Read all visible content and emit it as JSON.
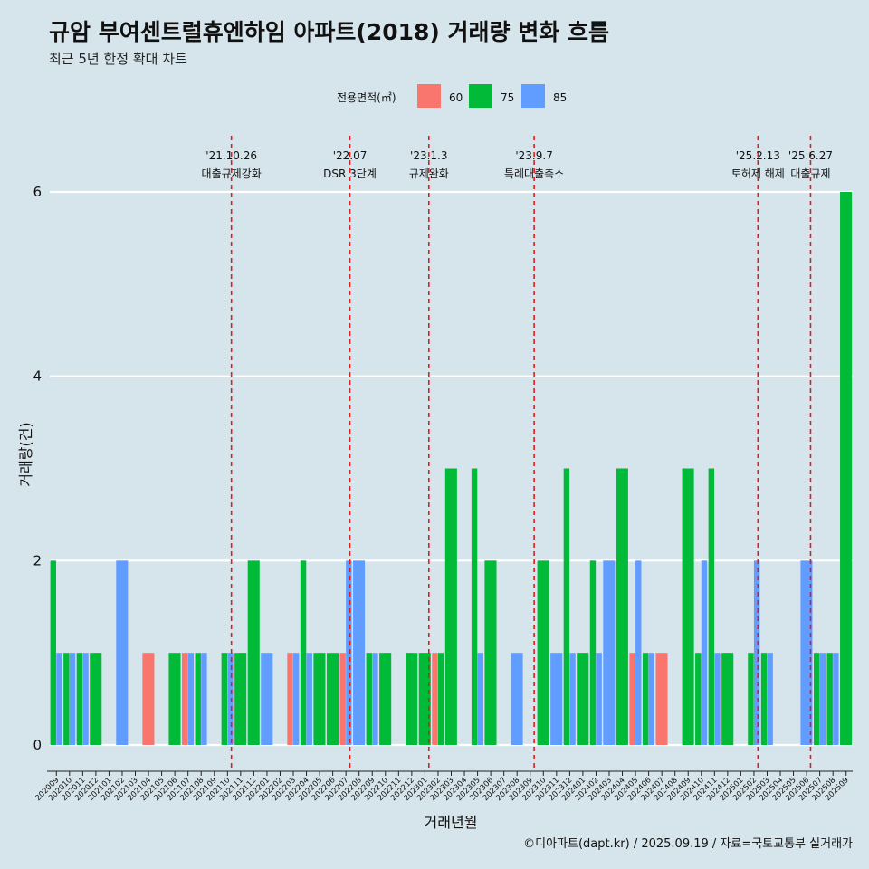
{
  "header": {
    "title": "규암 부여센트럴휴엔하임 아파트(2018) 거래량 변화 흐름",
    "subtitle": "최근 5년 한정 확대 차트"
  },
  "caption": "©디아파트(dapt.kr) / 2025.09.19 / 자료=국토교통부 실거래가",
  "colors": {
    "60": "#f8766d",
    "75": "#00ba38",
    "85": "#619cff",
    "background": "#d6e4eb",
    "event_line": "#e41a1c"
  },
  "chart_data": {
    "type": "bar",
    "stacking": "dodge",
    "xlabel": "거래년월",
    "ylabel": "거래량(건)",
    "ylim": [
      0,
      6
    ],
    "yticks": [
      0,
      2,
      4,
      6
    ],
    "grid": "horizontal",
    "legend": {
      "title": "전용면적(㎡)",
      "position": "top",
      "entries": [
        "60",
        "75",
        "85"
      ]
    },
    "categories": [
      "202009",
      "202010",
      "202011",
      "202012",
      "202101",
      "202102",
      "202103",
      "202104",
      "202105",
      "202106",
      "202107",
      "202108",
      "202109",
      "202110",
      "202111",
      "202112",
      "202201",
      "202202",
      "202203",
      "202204",
      "202205",
      "202206",
      "202207",
      "202208",
      "202209",
      "202210",
      "202211",
      "202212",
      "202301",
      "202302",
      "202303",
      "202304",
      "202305",
      "202306",
      "202307",
      "202308",
      "202309",
      "202310",
      "202311",
      "202312",
      "202401",
      "202402",
      "202403",
      "202404",
      "202405",
      "202406",
      "202407",
      "202408",
      "202409",
      "202410",
      "202411",
      "202412",
      "202501",
      "202502",
      "202503",
      "202504",
      "202505",
      "202506",
      "202507",
      "202508",
      "202509"
    ],
    "series": [
      {
        "name": "60",
        "values": [
          0,
          0,
          0,
          0,
          0,
          0,
          0,
          1,
          0,
          0,
          1,
          0,
          0,
          0,
          0,
          0,
          0,
          0,
          1,
          0,
          0,
          0,
          1,
          0,
          0,
          0,
          0,
          0,
          0,
          1,
          0,
          0,
          0,
          0,
          0,
          0,
          0,
          0,
          0,
          0,
          0,
          0,
          0,
          0,
          1,
          0,
          1,
          0,
          0,
          0,
          0,
          0,
          0,
          0,
          0,
          0,
          0,
          0,
          0,
          0,
          0
        ]
      },
      {
        "name": "75",
        "values": [
          2,
          1,
          1,
          1,
          0,
          0,
          0,
          0,
          0,
          1,
          0,
          1,
          0,
          1,
          1,
          2,
          0,
          0,
          0,
          2,
          1,
          1,
          0,
          0,
          1,
          1,
          0,
          1,
          1,
          1,
          3,
          0,
          3,
          2,
          0,
          0,
          0,
          2,
          0,
          3,
          1,
          2,
          0,
          3,
          0,
          1,
          0,
          0,
          3,
          1,
          3,
          1,
          0,
          1,
          1,
          0,
          0,
          0,
          1,
          1,
          6
        ]
      },
      {
        "name": "85",
        "values": [
          1,
          1,
          1,
          0,
          0,
          2,
          0,
          0,
          0,
          0,
          1,
          1,
          0,
          1,
          0,
          0,
          1,
          0,
          1,
          1,
          0,
          0,
          2,
          2,
          1,
          0,
          0,
          0,
          0,
          0,
          0,
          0,
          1,
          0,
          0,
          1,
          0,
          0,
          1,
          1,
          0,
          1,
          2,
          0,
          2,
          1,
          0,
          0,
          0,
          2,
          1,
          0,
          0,
          2,
          1,
          0,
          0,
          2,
          1,
          1,
          0
        ]
      }
    ],
    "events": [
      {
        "date": "'21.10.26",
        "label": "대출규제강화",
        "x_index": 13.8
      },
      {
        "date": "'22.07",
        "label": "DSR 3단계",
        "x_index": 22.8
      },
      {
        "date": "'23.1.3",
        "label": "규제완화",
        "x_index": 28.8
      },
      {
        "date": "'23.9.7",
        "label": "특례대출축소",
        "x_index": 36.8
      },
      {
        "date": "'25.2.13",
        "label": "토허제 해제",
        "x_index": 53.8
      },
      {
        "date": "'25.6.27",
        "label": "대출규제",
        "x_index": 57.8
      }
    ]
  }
}
